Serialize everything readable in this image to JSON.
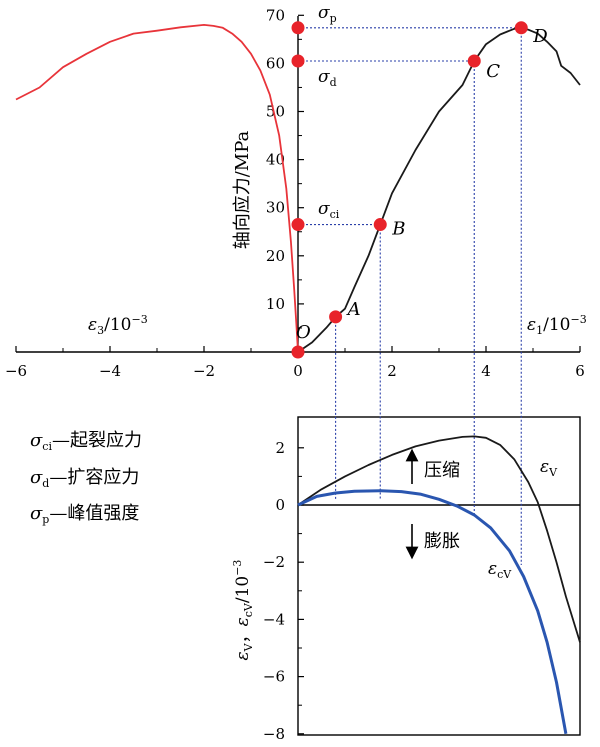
{
  "chart_data": [
    {
      "type": "line",
      "ylabel": "轴向应力/MPa",
      "xlabel_left": "ε3/10-3",
      "xlabel_right": "ε1/10-3",
      "xlim": [
        -6,
        6
      ],
      "ylim": [
        0,
        70
      ],
      "xticks": [
        "−6",
        "−4",
        "−2",
        "0",
        "2",
        "4",
        "6"
      ],
      "yticks": [
        "10",
        "20",
        "30",
        "40",
        "50",
        "60",
        "70"
      ],
      "series": [
        {
          "key": "lateral",
          "color": "#e8343a",
          "points": [
            [
              -6.0,
              52.5
            ],
            [
              -5.5,
              55
            ],
            [
              -5.0,
              59.2
            ],
            [
              -4.5,
              62
            ],
            [
              -4.0,
              64.5
            ],
            [
              -3.5,
              66.2
            ],
            [
              -3.0,
              66.8
            ],
            [
              -2.5,
              67.5
            ],
            [
              -2.0,
              68
            ],
            [
              -1.8,
              67.8
            ],
            [
              -1.6,
              67.4
            ],
            [
              -1.4,
              66.2
            ],
            [
              -1.2,
              64.5
            ],
            [
              -1.0,
              62
            ],
            [
              -0.8,
              58.5
            ],
            [
              -0.6,
              53.5
            ],
            [
              -0.4,
              45
            ],
            [
              -0.25,
              34
            ],
            [
              -0.15,
              23
            ],
            [
              -0.08,
              13
            ],
            [
              -0.03,
              5
            ],
            [
              0,
              0
            ]
          ]
        },
        {
          "key": "axial",
          "color": "#1a1a1a",
          "points": [
            [
              0,
              0
            ],
            [
              0.3,
              2
            ],
            [
              0.6,
              5
            ],
            [
              0.8,
              7.3
            ],
            [
              1.0,
              9
            ],
            [
              1.2,
              13.5
            ],
            [
              1.5,
              20
            ],
            [
              1.75,
              26.5
            ],
            [
              2.0,
              33
            ],
            [
              2.5,
              42
            ],
            [
              3.0,
              50
            ],
            [
              3.5,
              55.5
            ],
            [
              3.75,
              60.5
            ],
            [
              4.0,
              64
            ],
            [
              4.3,
              66
            ],
            [
              4.6,
              67.2
            ],
            [
              4.75,
              67.4
            ],
            [
              4.9,
              67
            ],
            [
              5.1,
              66.2
            ],
            [
              5.3,
              64.5
            ],
            [
              5.5,
              62.5
            ],
            [
              5.6,
              59.5
            ],
            [
              5.8,
              58
            ],
            [
              6.0,
              55.5
            ]
          ]
        }
      ],
      "points": [
        {
          "label": "O",
          "x": 0,
          "y": 0
        },
        {
          "label": "A",
          "x": 0.8,
          "y": 7.3
        },
        {
          "label": "B",
          "x": 1.75,
          "y": 26.5
        },
        {
          "label": "C",
          "x": 3.75,
          "y": 60.5
        },
        {
          "label": "D",
          "x": 4.75,
          "y": 67.4
        }
      ],
      "axis_markers": [
        {
          "label": "σci",
          "y": 26.5
        },
        {
          "label": "σd",
          "y": 60.5
        },
        {
          "label": "σp",
          "y": 67.4
        }
      ],
      "marker_color": "#e8232a"
    },
    {
      "type": "line",
      "ylabel": "εV，εcV/10-3",
      "xlim": [
        0,
        6
      ],
      "ylim": [
        -8,
        3
      ],
      "yticks": [
        "2",
        "0",
        "−2",
        "−4",
        "−6",
        "−8"
      ],
      "annotations": [
        "压缩",
        "膨胀"
      ],
      "series": [
        {
          "name": "εV",
          "color": "#1a1a1a",
          "points": [
            [
              0,
              0
            ],
            [
              0.5,
              0.55
            ],
            [
              1.0,
              1.0
            ],
            [
              1.5,
              1.4
            ],
            [
              2.0,
              1.75
            ],
            [
              2.5,
              2.05
            ],
            [
              3.0,
              2.25
            ],
            [
              3.5,
              2.38
            ],
            [
              3.75,
              2.4
            ],
            [
              4.0,
              2.35
            ],
            [
              4.3,
              2.1
            ],
            [
              4.6,
              1.6
            ],
            [
              4.9,
              0.8
            ],
            [
              5.1,
              0.1
            ],
            [
              5.3,
              -0.9
            ],
            [
              5.5,
              -2.0
            ],
            [
              5.7,
              -3.2
            ],
            [
              6.0,
              -4.8
            ]
          ]
        },
        {
          "name": "εcV",
          "color": "#2a56b0",
          "points": [
            [
              0,
              0
            ],
            [
              0.4,
              0.3
            ],
            [
              0.8,
              0.42
            ],
            [
              1.2,
              0.48
            ],
            [
              1.75,
              0.5
            ],
            [
              2.2,
              0.47
            ],
            [
              2.6,
              0.38
            ],
            [
              3.0,
              0.2
            ],
            [
              3.4,
              -0.05
            ],
            [
              3.75,
              -0.35
            ],
            [
              4.1,
              -0.8
            ],
            [
              4.5,
              -1.6
            ],
            [
              4.8,
              -2.5
            ],
            [
              5.1,
              -3.7
            ],
            [
              5.3,
              -4.8
            ],
            [
              5.5,
              -6.2
            ],
            [
              5.7,
              -8.0
            ]
          ]
        }
      ]
    }
  ],
  "legend_text": [
    "σci—起裂应力",
    "σd—扩容应力",
    "σp—峰值强度"
  ]
}
